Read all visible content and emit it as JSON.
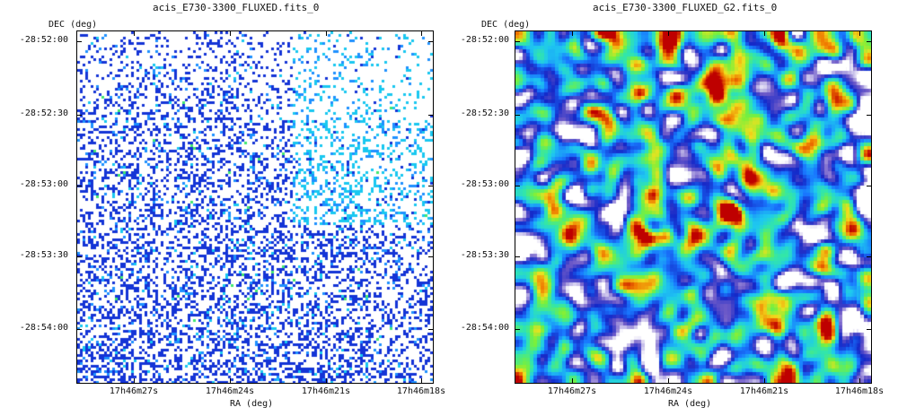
{
  "panels": [
    {
      "title": "acis_E730-3300_FLUXED.fits_0",
      "y_axis_label": "DEC (deg)",
      "x_axis_label": "RA (deg)",
      "y_ticks": [
        "-28:52:00",
        "-28:52:30",
        "-28:53:00",
        "-28:53:30",
        "-28:54:00"
      ],
      "x_ticks": [
        "17h46m27s",
        "17h46m24s",
        "17h46m21s",
        "17h46m18s"
      ],
      "image_style": "sparse-pixel-counts"
    },
    {
      "title": "acis_E730-3300_FLUXED_G2.fits_0",
      "y_axis_label": "DEC (deg)",
      "x_axis_label": "RA (deg)",
      "y_ticks": [
        "-28:52:00",
        "-28:52:30",
        "-28:53:00",
        "-28:53:30",
        "-28:54:00"
      ],
      "x_ticks": [
        "17h46m27s",
        "17h46m24s",
        "17h46m21s",
        "17h46m18s"
      ],
      "image_style": "gaussian-smoothed"
    }
  ],
  "colormap": [
    "#ffffff",
    "#1030d0",
    "#1e90ff",
    "#20d8f0",
    "#40e8a0",
    "#a0f040",
    "#f0e020",
    "#f08000",
    "#c00000",
    "#200000"
  ]
}
